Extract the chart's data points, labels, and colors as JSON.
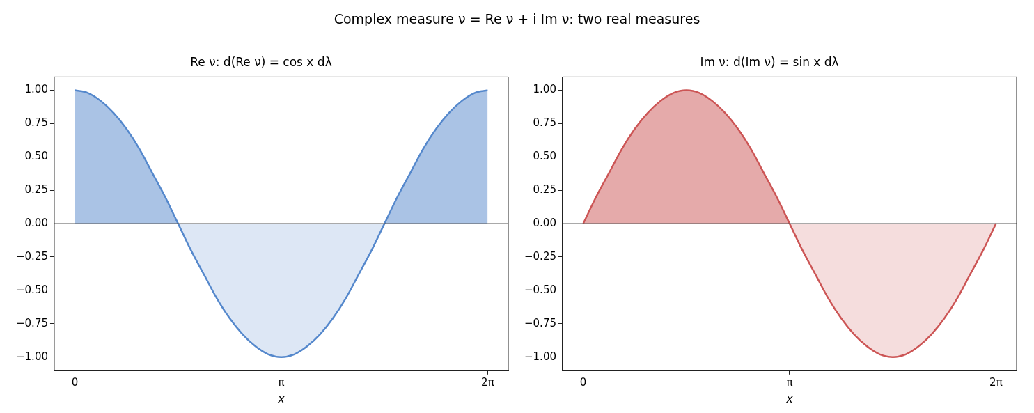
{
  "chart_data": [
    {
      "type": "area",
      "title": "Re ν: d(Re ν) = cos x dλ",
      "xlabel": "x",
      "annotations": [
        "Complex measure ν = Re ν + i Im ν: two real measures"
      ],
      "x": [
        0,
        0.196,
        0.393,
        0.589,
        0.785,
        0.982,
        1.178,
        1.374,
        1.571,
        1.767,
        1.963,
        2.16,
        2.356,
        2.553,
        2.749,
        2.945,
        3.142,
        3.338,
        3.534,
        3.731,
        3.927,
        4.123,
        4.32,
        4.516,
        4.712,
        4.909,
        5.105,
        5.301,
        5.498,
        5.694,
        5.89,
        6.087,
        6.283
      ],
      "series": [
        {
          "color": "#5588cc",
          "values": [
            1,
            0.98,
            0.92,
            0.83,
            0.71,
            0.56,
            0.38,
            0.2,
            0,
            -0.2,
            -0.38,
            -0.56,
            -0.71,
            -0.83,
            -0.92,
            -0.98,
            -1,
            -0.98,
            -0.92,
            -0.83,
            -0.71,
            -0.56,
            -0.38,
            -0.2,
            0,
            0.2,
            0.38,
            0.56,
            0.71,
            0.83,
            0.92,
            0.98,
            1
          ]
        }
      ],
      "xlim": [
        -0.314,
        6.597
      ],
      "ylim": [
        -1.1,
        1.1
      ],
      "xticks": [
        {
          "value": 0,
          "label": "0"
        },
        {
          "value": 3.1416,
          "label": "π"
        },
        {
          "value": 6.2832,
          "label": "2π"
        }
      ],
      "yticks": [
        {
          "value": -1,
          "label": "−1.00"
        },
        {
          "value": -0.75,
          "label": "−0.75"
        },
        {
          "value": -0.5,
          "label": "−0.50"
        },
        {
          "value": -0.25,
          "label": "−0.25"
        },
        {
          "value": 0,
          "label": "0.00"
        },
        {
          "value": 0.25,
          "label": "0.25"
        },
        {
          "value": 0.5,
          "label": "0.50"
        },
        {
          "value": 0.75,
          "label": "0.75"
        },
        {
          "value": 1,
          "label": "1.00"
        }
      ],
      "ref_lines": [
        {
          "axis": "y",
          "value": 0,
          "color": "#555555"
        }
      ],
      "grid": false,
      "legend": false,
      "marker": "none",
      "line_style": "solid"
    },
    {
      "type": "area",
      "title": "Im ν: d(Im ν) = sin x dλ",
      "xlabel": "x",
      "x": [
        0,
        0.196,
        0.393,
        0.589,
        0.785,
        0.982,
        1.178,
        1.374,
        1.571,
        1.767,
        1.963,
        2.16,
        2.356,
        2.553,
        2.749,
        2.945,
        3.142,
        3.338,
        3.534,
        3.731,
        3.927,
        4.123,
        4.32,
        4.516,
        4.712,
        4.909,
        5.105,
        5.301,
        5.498,
        5.694,
        5.89,
        6.087,
        6.283
      ],
      "series": [
        {
          "color": "#cc5555",
          "values": [
            0,
            0.2,
            0.38,
            0.56,
            0.71,
            0.83,
            0.92,
            0.98,
            1,
            0.98,
            0.92,
            0.83,
            0.71,
            0.56,
            0.38,
            0.2,
            0,
            -0.2,
            -0.38,
            -0.56,
            -0.71,
            -0.83,
            -0.92,
            -0.98,
            -1,
            -0.98,
            -0.92,
            -0.83,
            -0.71,
            -0.56,
            -0.38,
            -0.2,
            0
          ]
        }
      ],
      "xlim": [
        -0.314,
        6.597
      ],
      "ylim": [
        -1.1,
        1.1
      ],
      "xticks": [
        {
          "value": 0,
          "label": "0"
        },
        {
          "value": 3.1416,
          "label": "π"
        },
        {
          "value": 6.2832,
          "label": "2π"
        }
      ],
      "yticks": [
        {
          "value": -1,
          "label": "−1.00"
        },
        {
          "value": -0.75,
          "label": "−0.75"
        },
        {
          "value": -0.5,
          "label": "−0.50"
        },
        {
          "value": -0.25,
          "label": "−0.25"
        },
        {
          "value": 0,
          "label": "0.00"
        },
        {
          "value": 0.25,
          "label": "0.25"
        },
        {
          "value": 0.5,
          "label": "0.50"
        },
        {
          "value": 0.75,
          "label": "0.75"
        },
        {
          "value": 1,
          "label": "1.00"
        }
      ],
      "ref_lines": [
        {
          "axis": "y",
          "value": 0,
          "color": "#555555"
        }
      ],
      "grid": false,
      "legend": false,
      "marker": "none",
      "line_style": "solid"
    }
  ]
}
